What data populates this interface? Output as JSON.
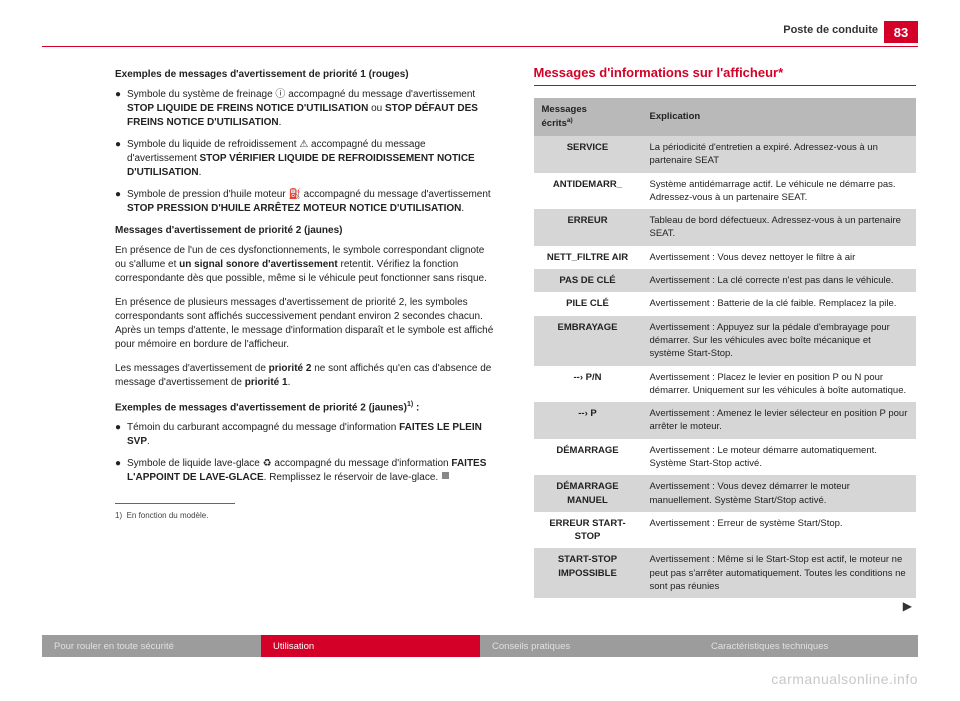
{
  "page": {
    "number": "83",
    "section": "Poste de conduite",
    "watermark": "carmanualsonline.info"
  },
  "left": {
    "h1": "Exemples de messages d'avertissement de priorité 1 (rouges)",
    "b1_pre": "Symbole du système de freinage ⓘ accompagné du message d'avertissement ",
    "b1_s1": "STOP LIQUIDE DE FREINS NOTICE D'UTILISATION",
    "b1_mid": " ou ",
    "b1_s2": "STOP DÉFAUT DES FREINS NOTICE D'UTILISATION",
    "b1_post": ".",
    "b2_pre": "Symbole du liquide de refroidissement ⚠ accompagné du message d'avertissement ",
    "b2_s1": "STOP VÉRIFIER LIQUIDE DE REFROIDISSEMENT NOTICE D'UTILISATION",
    "b2_post": ".",
    "b3_pre": "Symbole de pression d'huile moteur ⛽ accompagné du message d'avertissement ",
    "b3_s1": "STOP PRESSION D'HUILE ARRÊTEZ MOTEUR NOTICE D'UTILISATION",
    "b3_post": ".",
    "h2": "Messages d'avertissement de priorité 2 (jaunes)",
    "p1a": "En présence de l'un de ces dysfonctionnements, le symbole correspondant clignote ou s'allume et ",
    "p1b": "un signal sonore d'avertissement",
    "p1c": " retentit. Vérifiez la fonction correspondante dès que possible, même si le véhicule peut fonctionner sans risque.",
    "p2": "En présence de plusieurs messages d'avertissement de priorité 2, les symboles correspondants sont affichés successivement pendant environ 2 secondes chacun. Après un temps d'attente, le message d'information disparaît et le symbole est affiché pour mémoire en bordure de l'afficheur.",
    "p3a": "Les messages d'avertissement de ",
    "p3b": "priorité 2",
    "p3c": " ne sont affichés qu'en cas d'absence de message d'avertissement de ",
    "p3d": "priorité 1",
    "p3e": ".",
    "h3a": "Exemples de messages d'avertissement de priorité 2 (jaunes)",
    "h3b": " :",
    "b4_pre": "Témoin du carburant accompagné du message d'information ",
    "b4_s1": "FAITES LE PLEIN SVP",
    "b4_post": ".",
    "b5_pre": "Symbole de liquide lave-glace ♻ accompagné du message d'information ",
    "b5_s1": "FAITES L'APPOINT DE LAVE-GLACE",
    "b5_post": ". Remplissez le réservoir de lave-glace.",
    "fn_marker": "1)",
    "fn_text": "En fonction du modèle."
  },
  "right": {
    "title": "Messages d'informations sur l'afficheur*",
    "header_key_a": "Messages",
    "header_key_b": "écrits",
    "header_val": "Explication",
    "rows": [
      {
        "k": "SERVICE",
        "v": "La périodicité d'entretien a expiré. Adressez-vous à un partenaire SEAT",
        "shade": true
      },
      {
        "k": "ANTIDEMARR_",
        "v": "Système antidémarrage actif. Le véhicule ne démarre pas. Adressez-vous à un partenaire SEAT.",
        "shade": false
      },
      {
        "k": "ERREUR",
        "v": "Tableau de bord défectueux. Adressez-vous à un partenaire SEAT.",
        "shade": true
      },
      {
        "k": "NETT_FILTRE AIR",
        "v": "Avertissement : Vous devez nettoyer le filtre à air",
        "shade": false
      },
      {
        "k": "PAS DE CLÉ",
        "v": "Avertissement : La clé correcte n'est pas dans le véhicule.",
        "shade": true
      },
      {
        "k": "PILE CLÉ",
        "v": "Avertissement : Batterie de la clé faible. Remplacez la pile.",
        "shade": false
      },
      {
        "k": "EMBRAYAGE",
        "v": "Avertissement : Appuyez sur la pédale d'embrayage pour démarrer. Sur les véhicules avec boîte mécanique et système Start-Stop.",
        "shade": true
      },
      {
        "k": "--› P/N",
        "v": "Avertissement : Placez le levier en position P ou N pour démarrer. Uniquement sur les véhicules à boîte automatique.",
        "shade": false
      },
      {
        "k": "--› P",
        "v": "Avertissement : Amenez le levier sélecteur en position P pour arrêter le moteur.",
        "shade": true
      },
      {
        "k": "DÉMARRAGE",
        "v": "Avertissement : Le moteur démarre automatiquement. Système Start-Stop activé.",
        "shade": false
      },
      {
        "k": "DÉMARRAGE MANUEL",
        "v": "Avertissement : Vous devez démarrer le moteur manuellement. Système Start/Stop activé.",
        "shade": true
      },
      {
        "k": "ERREUR START-STOP",
        "v": "Avertissement : Erreur de système Start/Stop.",
        "shade": false
      },
      {
        "k": "START-STOP IMPOSSIBLE",
        "v": "Avertissement : Même si le Start-Stop est actif, le moteur ne peut pas s'arrêter automatiquement. Toutes les conditions ne sont pas réunies",
        "shade": true
      }
    ],
    "continue": "▶"
  },
  "footer": {
    "t1": "Pour rouler en toute sécurité",
    "t2": "Utilisation",
    "t3": "Conseils pratiques",
    "t4": "Caractéristiques techniques"
  },
  "colors": {
    "accent": "#d40028",
    "gray_dark": "#9c9c9c",
    "gray_row": "#d6d6d6",
    "gray_head": "#b9b9b9",
    "text": "#222222"
  }
}
